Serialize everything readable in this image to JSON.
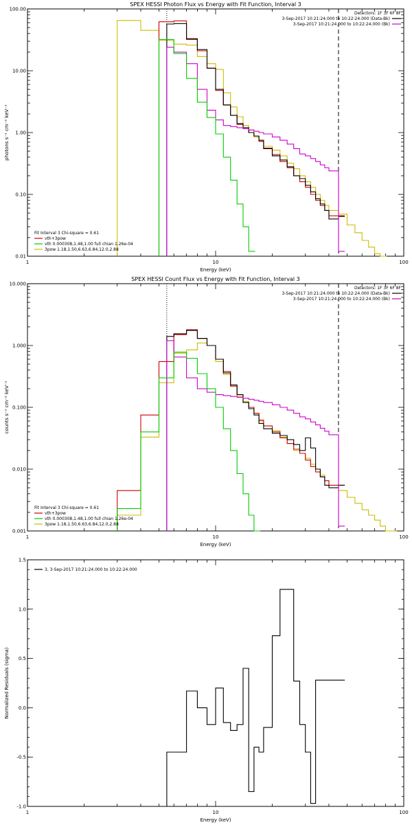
{
  "colors": {
    "black": "#000000",
    "red": "#cc0000",
    "magenta": "#cc00cc",
    "green": "#00cc00",
    "yellow": "#ccbb00"
  },
  "chart_data": [
    {
      "type": "line",
      "title": "SPEX HESSI Photon Flux vs Energy with Fit Function, Interval 3",
      "xlabel": "Energy (keV)",
      "ylabel": "photons s⁻¹ cm⁻² keV⁻¹",
      "xscale": "log",
      "yscale": "log",
      "xlim": [
        1,
        100
      ],
      "ylim": [
        0.01,
        100
      ],
      "xticks": [
        {
          "v": 1,
          "label": "1"
        },
        {
          "v": 10,
          "label": "10"
        },
        {
          "v": 100,
          "label": "100"
        }
      ],
      "yticks": [
        {
          "v": 0.01,
          "label": "0.01"
        },
        {
          "v": 0.1,
          "label": "0.10"
        },
        {
          "v": 1,
          "label": "1.00"
        },
        {
          "v": 10,
          "label": "10.00"
        },
        {
          "v": 100,
          "label": "100.00"
        }
      ],
      "vlines": [
        {
          "x": 5.5,
          "style": "magenta"
        },
        {
          "x": 45,
          "style": "dashed"
        }
      ],
      "legend_tr": {
        "title": "Detectors: 1F 3F 6F 8F",
        "entries": [
          {
            "text": "3-Sep-2017 10:21:24.000 to 10:22:24.000 (Data-Bk)",
            "color": "black"
          },
          {
            "text": "3-Sep-2017 10:21:24.000 to 10:22:24.000 (Bk)",
            "color": "magenta"
          }
        ]
      },
      "legend_bl": {
        "title": "Fit Interval 3   Chi-square = 0.61",
        "entries": [
          {
            "text": "vth+3pow",
            "color": "red"
          },
          {
            "text": "vth 0.000308,1.48,1.00  full chian 1.26e-04",
            "color": "green"
          },
          {
            "text": "3pow 1.18,1.50,6.63,6.84,12.0,2.88",
            "color": "yellow"
          }
        ]
      },
      "series": [
        {
          "color": "yellow",
          "x": [
            3,
            4,
            5,
            6,
            7,
            8,
            9,
            10,
            11,
            12,
            13,
            14,
            15,
            16,
            17,
            18,
            20,
            22,
            24,
            26,
            28,
            30,
            32,
            34,
            36,
            38,
            40,
            45,
            50,
            55,
            60,
            65,
            70,
            75
          ],
          "y": [
            65,
            45,
            31,
            27,
            26,
            17,
            13,
            10.5,
            4.4,
            2.6,
            1.8,
            1.3,
            1.1,
            0.85,
            0.72,
            0.6,
            0.52,
            0.42,
            0.32,
            0.26,
            0.2,
            0.16,
            0.13,
            0.1,
            0.08,
            0.066,
            0.055,
            0.048,
            0.032,
            0.024,
            0.018,
            0.014,
            0.011,
            0.009
          ]
        },
        {
          "color": "red",
          "x": [
            5,
            6,
            7,
            8,
            9,
            10,
            11,
            12,
            13,
            14,
            15,
            16,
            17,
            18,
            20,
            22,
            24,
            26,
            28,
            30,
            32,
            34,
            36,
            38,
            40,
            45
          ],
          "y": [
            62,
            64,
            32,
            21,
            11,
            4.8,
            2.8,
            1.9,
            1.35,
            1.2,
            1.0,
            0.88,
            0.72,
            0.56,
            0.44,
            0.34,
            0.27,
            0.2,
            0.16,
            0.13,
            0.1,
            0.08,
            0.066,
            0.055,
            0.045,
            0.045
          ]
        },
        {
          "color": "black",
          "x": [
            5.5,
            6,
            7,
            8,
            9,
            10,
            11,
            12,
            13,
            14,
            15,
            16,
            17,
            18,
            20,
            22,
            24,
            26,
            28,
            30,
            32,
            34,
            36,
            38,
            40,
            45
          ],
          "y": [
            57,
            58,
            33,
            22,
            11,
            5.0,
            2.8,
            1.9,
            1.4,
            1.2,
            1.0,
            0.88,
            0.75,
            0.55,
            0.42,
            0.36,
            0.28,
            0.2,
            0.18,
            0.14,
            0.11,
            0.085,
            0.07,
            0.055,
            0.04,
            0.044
          ]
        },
        {
          "color": "magenta",
          "x": [
            5.5,
            6,
            7,
            8,
            9,
            10,
            11,
            12,
            13,
            14,
            15,
            16,
            17,
            18,
            20,
            22,
            24,
            26,
            28,
            30,
            32,
            34,
            36,
            38,
            40,
            45
          ],
          "y": [
            24,
            20,
            13,
            5.0,
            2.3,
            1.6,
            1.3,
            1.25,
            1.2,
            1.15,
            1.1,
            1.05,
            1.0,
            0.95,
            0.85,
            0.75,
            0.65,
            0.55,
            0.45,
            0.42,
            0.38,
            0.34,
            0.3,
            0.27,
            0.24,
            0.012
          ]
        },
        {
          "color": "green",
          "x": [
            5,
            6,
            7,
            8,
            9,
            10,
            11,
            12,
            13,
            14,
            15
          ],
          "y": [
            32,
            19,
            7.5,
            3.1,
            1.75,
            0.95,
            0.4,
            0.17,
            0.07,
            0.03,
            0.012
          ]
        }
      ]
    },
    {
      "type": "line",
      "title": "SPEX HESSI Count Flux vs Energy with Fit Function, Interval 3",
      "xlabel": "Energy (keV)",
      "ylabel": "counts s⁻¹ cm⁻² keV⁻¹",
      "xscale": "log",
      "yscale": "log",
      "xlim": [
        1,
        100
      ],
      "ylim": [
        0.001,
        10
      ],
      "xticks": [
        {
          "v": 1,
          "label": "1"
        },
        {
          "v": 10,
          "label": "10"
        },
        {
          "v": 100,
          "label": "100"
        }
      ],
      "yticks": [
        {
          "v": 0.001,
          "label": "0.001"
        },
        {
          "v": 0.01,
          "label": "0.010"
        },
        {
          "v": 0.1,
          "label": "0.100"
        },
        {
          "v": 1,
          "label": "1.000"
        },
        {
          "v": 10,
          "label": "10.000"
        }
      ],
      "vlines": [
        {
          "x": 5.5,
          "style": "dotted"
        },
        {
          "x": 45,
          "style": "dashed"
        }
      ],
      "legend_tr": {
        "title": "Detectors: 1F 3F 6F 8F",
        "entries": [
          {
            "text": "3-Sep-2017 10:21:24.000 to 10:22:24.000 (Data-Bk)",
            "color": "black"
          },
          {
            "text": "3-Sep-2017 10:21:24.000 to 10:22:24.000 (Bk)",
            "color": "magenta"
          }
        ]
      },
      "legend_bl": {
        "title": "Fit Interval 3   Chi-square = 0.61",
        "entries": [
          {
            "text": "vth+3pow",
            "color": "red"
          },
          {
            "text": "vth 0.000308,1.48,1.00  full chian 1.26e-04",
            "color": "green"
          },
          {
            "text": "3pow 1.18,1.50,6.63,6.84,12.0,2.88",
            "color": "yellow"
          }
        ]
      },
      "series": [
        {
          "color": "yellow",
          "x": [
            3,
            4,
            5,
            6,
            7,
            8,
            9,
            10,
            11,
            12,
            13,
            14,
            15,
            16,
            17,
            18,
            20,
            22,
            24,
            26,
            28,
            30,
            32,
            34,
            36,
            38,
            40,
            45,
            50,
            55,
            60,
            65,
            70,
            75,
            80,
            85
          ],
          "y": [
            0.0018,
            0.033,
            0.25,
            0.75,
            0.85,
            1.1,
            1.0,
            0.55,
            0.34,
            0.22,
            0.15,
            0.125,
            0.1,
            0.08,
            0.06,
            0.05,
            0.042,
            0.033,
            0.026,
            0.02,
            0.018,
            0.015,
            0.012,
            0.01,
            0.008,
            0.0065,
            0.0055,
            0.0045,
            0.0035,
            0.0028,
            0.0022,
            0.0018,
            0.0015,
            0.0012,
            0.001,
            0.001
          ]
        },
        {
          "color": "red",
          "x": [
            3,
            4,
            5,
            6,
            7,
            8,
            9,
            10,
            11,
            12,
            13,
            14,
            15,
            16,
            17,
            18,
            20,
            22,
            24,
            26,
            28,
            30,
            32,
            34,
            36,
            38,
            40,
            45
          ],
          "y": [
            0.0045,
            0.075,
            0.55,
            1.5,
            1.8,
            1.3,
            1.0,
            0.6,
            0.38,
            0.22,
            0.16,
            0.12,
            0.1,
            0.08,
            0.062,
            0.05,
            0.04,
            0.032,
            0.026,
            0.021,
            0.018,
            0.014,
            0.011,
            0.009,
            0.0075,
            0.0065,
            0.0055,
            0.0055
          ]
        },
        {
          "color": "black",
          "x": [
            5.5,
            6,
            7,
            8,
            9,
            10,
            11,
            12,
            13,
            14,
            15,
            16,
            17,
            18,
            20,
            22,
            24,
            26,
            28,
            30,
            32,
            34,
            36,
            38,
            40,
            45
          ],
          "y": [
            1.4,
            1.55,
            1.75,
            1.3,
            1.0,
            0.6,
            0.36,
            0.23,
            0.16,
            0.12,
            0.095,
            0.075,
            0.055,
            0.045,
            0.038,
            0.035,
            0.03,
            0.025,
            0.02,
            0.032,
            0.022,
            0.01,
            0.0075,
            0.0055,
            0.005,
            0.0055
          ]
        },
        {
          "color": "magenta",
          "x": [
            5.5,
            6,
            7,
            8,
            9,
            10,
            11,
            12,
            13,
            14,
            15,
            16,
            17,
            18,
            20,
            22,
            24,
            26,
            28,
            30,
            32,
            34,
            36,
            38,
            40,
            45
          ],
          "y": [
            1.2,
            0.65,
            0.3,
            0.2,
            0.175,
            0.16,
            0.155,
            0.15,
            0.145,
            0.14,
            0.135,
            0.13,
            0.125,
            0.12,
            0.11,
            0.1,
            0.09,
            0.08,
            0.07,
            0.065,
            0.058,
            0.052,
            0.046,
            0.041,
            0.036,
            0.0012
          ]
        },
        {
          "color": "green",
          "x": [
            3,
            4,
            5,
            6,
            7,
            8,
            9,
            10,
            11,
            12,
            13,
            14,
            15,
            16
          ],
          "y": [
            0.0023,
            0.04,
            0.3,
            0.78,
            0.62,
            0.35,
            0.2,
            0.1,
            0.045,
            0.02,
            0.0085,
            0.004,
            0.0018,
            0.001
          ]
        }
      ]
    },
    {
      "type": "line",
      "title": "",
      "xlabel": "Energy (keV)",
      "ylabel": "Normalized Residuals (sigma)",
      "xscale": "log",
      "yscale": "linear",
      "xlim": [
        1,
        100
      ],
      "ylim": [
        -1,
        1.5
      ],
      "xticks": [
        {
          "v": 1,
          "label": "1"
        },
        {
          "v": 10,
          "label": "10"
        },
        {
          "v": 100,
          "label": "100"
        }
      ],
      "yticks": [
        {
          "v": -1,
          "label": "-1.0"
        },
        {
          "v": -0.5,
          "label": "-0.5"
        },
        {
          "v": 0,
          "label": "0.0"
        },
        {
          "v": 0.5,
          "label": "0.5"
        },
        {
          "v": 1,
          "label": "1.0"
        },
        {
          "v": 1.5,
          "label": "1.5"
        }
      ],
      "legend_tl": {
        "entries": [
          {
            "text": "3,  3-Sep-2017 10:21:24.000 to 10:22:24.000",
            "color": "black"
          }
        ]
      },
      "series": [
        {
          "color": "black",
          "x": [
            5.5,
            6,
            7,
            8,
            9,
            10,
            11,
            12,
            13,
            14,
            15,
            16,
            17,
            18,
            20,
            22,
            24,
            26,
            28,
            30,
            32,
            34,
            36,
            38,
            40,
            45
          ],
          "y": [
            -0.45,
            -0.45,
            0.17,
            0,
            -0.17,
            0.2,
            -0.15,
            -0.23,
            -0.17,
            0.4,
            -0.85,
            -0.4,
            -0.45,
            -0.2,
            0.73,
            1.2,
            1.2,
            0.27,
            -0.17,
            -0.45,
            -0.97,
            0.28,
            0.28,
            0.28,
            0.28,
            0.28
          ]
        }
      ]
    }
  ]
}
